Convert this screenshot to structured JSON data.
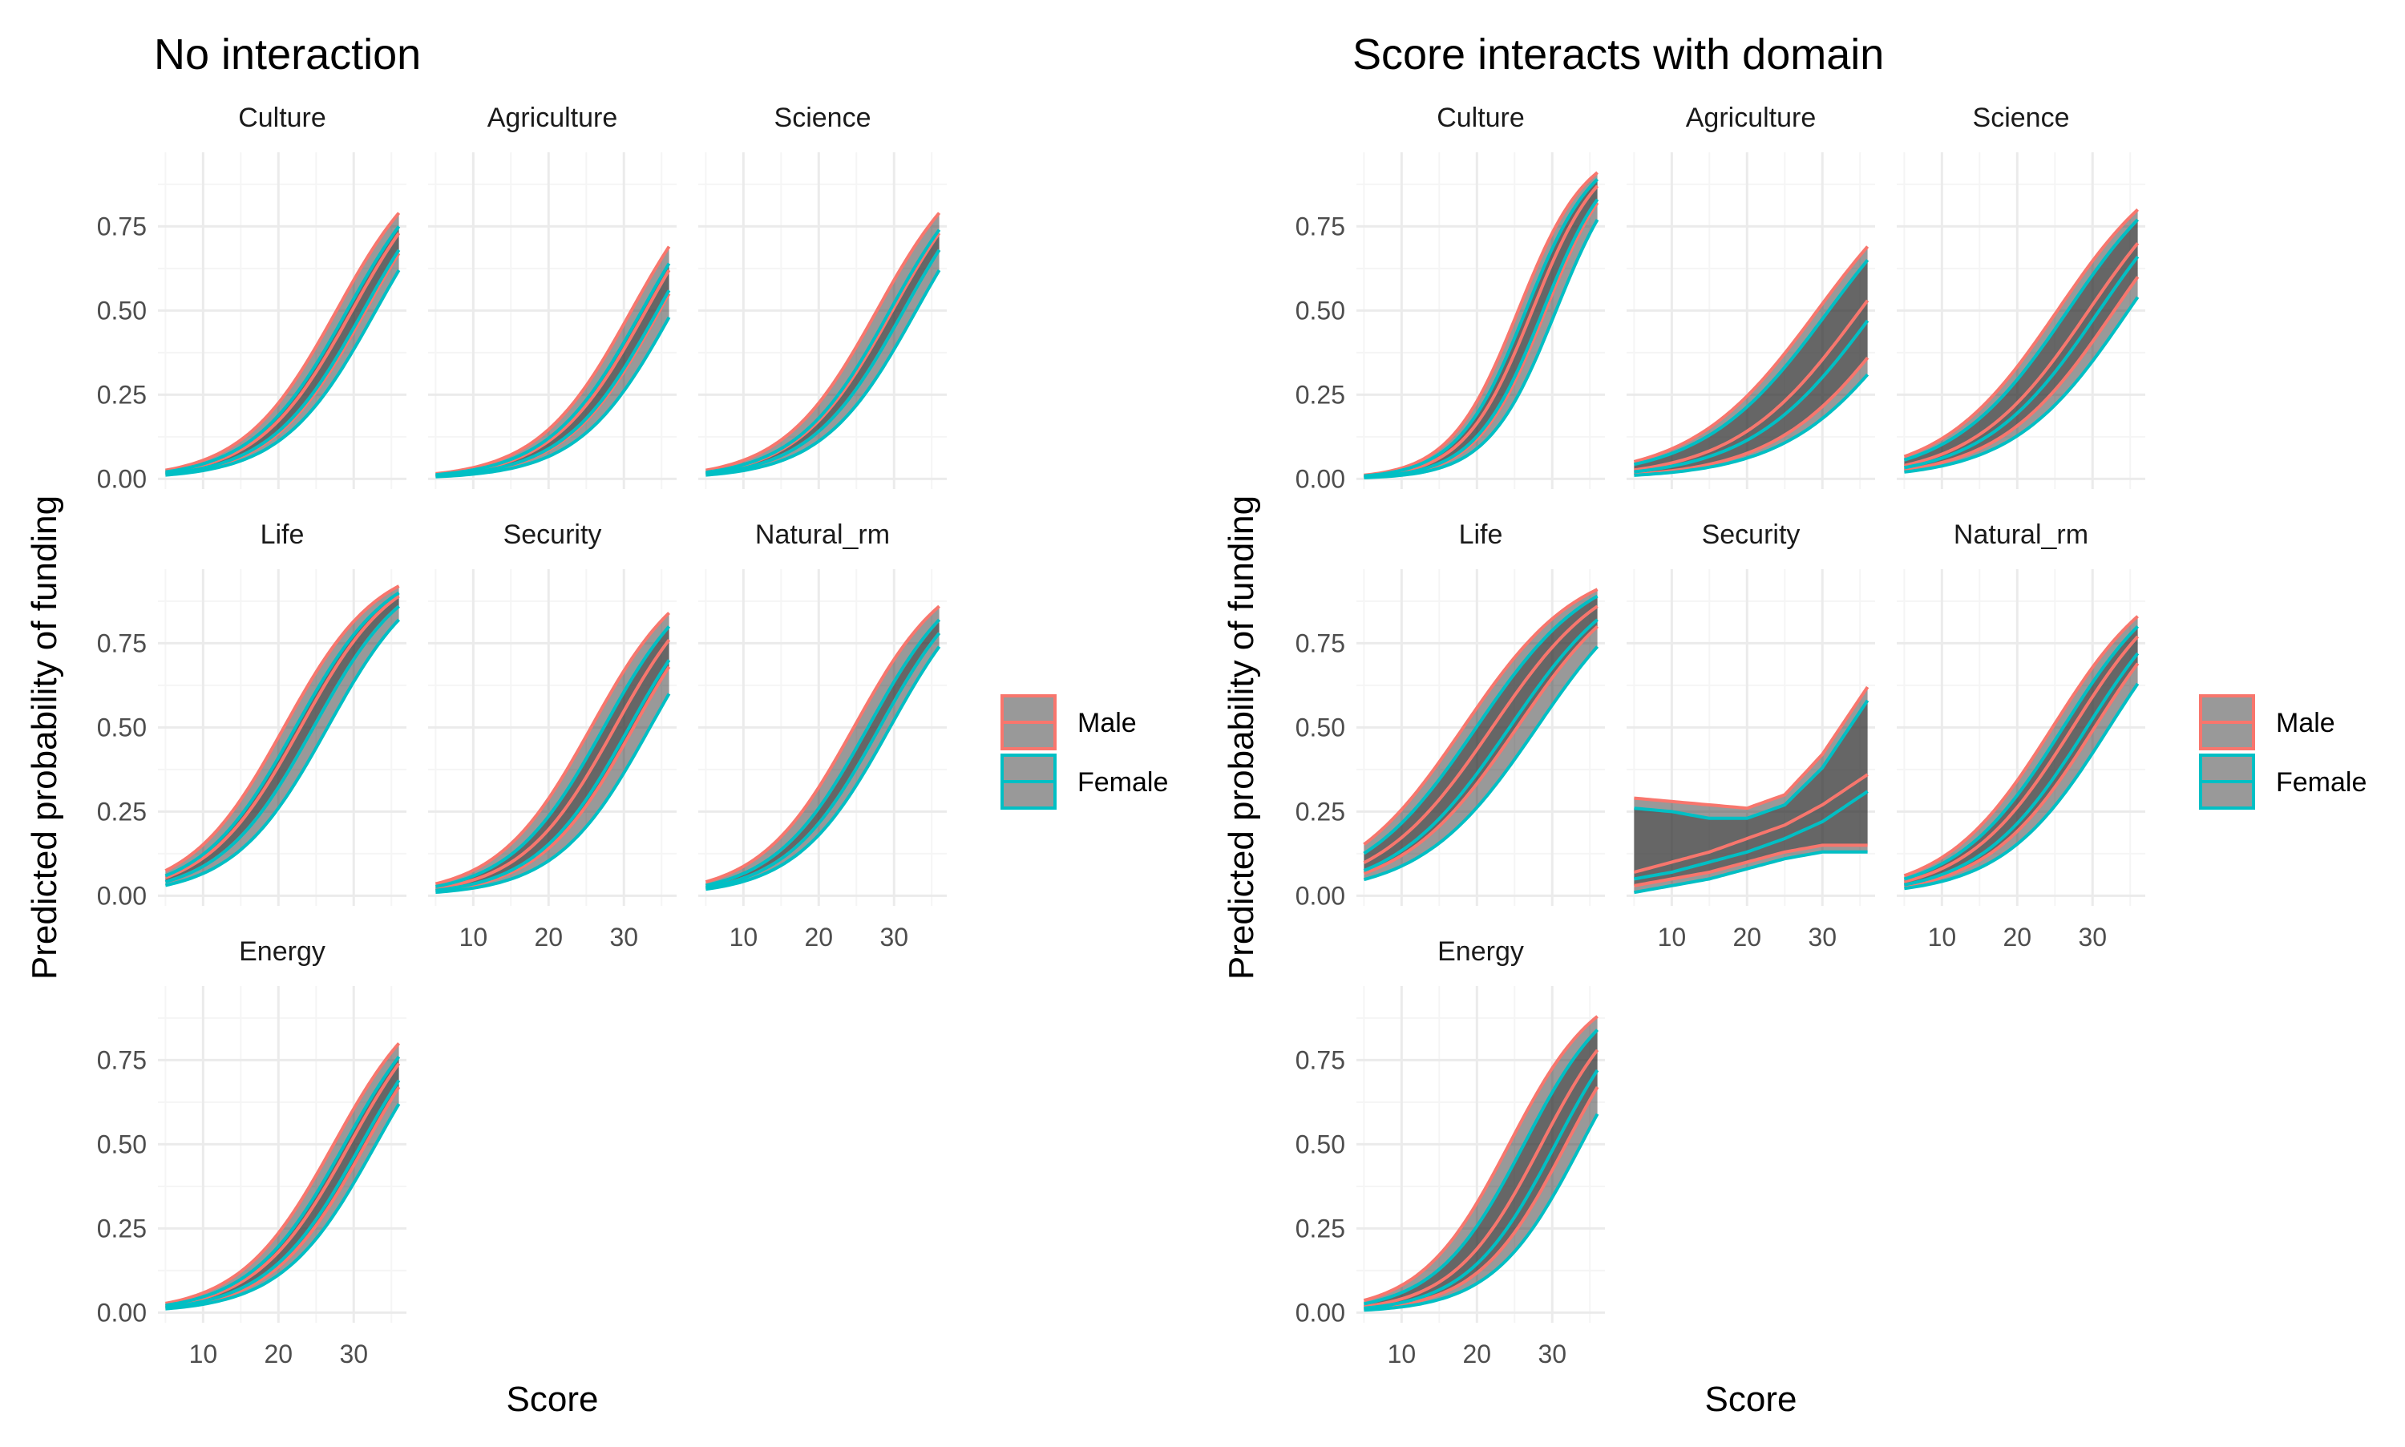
{
  "colors": {
    "male": "#F8766D",
    "female": "#00BFC4",
    "ribbon": "#333333",
    "grid_major": "#EBEBEB",
    "grid_minor": "#F5F5F5"
  },
  "legend": {
    "entries": [
      {
        "label": "Male",
        "color": "#F8766D"
      },
      {
        "label": "Female",
        "color": "#00BFC4"
      }
    ]
  },
  "chart_data": [
    {
      "type": "line",
      "title": "No interaction",
      "xlabel": "Score",
      "ylabel": "Predicted probability of funding",
      "xlim": [
        4,
        37
      ],
      "ylim": [
        -0.03,
        0.97
      ],
      "xticks": [
        10,
        20,
        30
      ],
      "yticks": [
        0.0,
        0.25,
        0.5,
        0.75
      ],
      "ytick_labels": [
        "0.00",
        "0.25",
        "0.50",
        "0.75"
      ],
      "x_range": [
        5,
        36
      ],
      "grid": true,
      "legend_position": "right",
      "facets": [
        {
          "name": "Culture",
          "series": [
            {
              "name": "Male",
              "at_x36": {
                "lo": 0.67,
                "fit": 0.73,
                "hi": 0.79
              },
              "logit_slope": 0.16
            },
            {
              "name": "Female",
              "at_x36": {
                "lo": 0.62,
                "fit": 0.68,
                "hi": 0.75
              },
              "logit_slope": 0.16
            }
          ]
        },
        {
          "name": "Agriculture",
          "series": [
            {
              "name": "Male",
              "at_x36": {
                "lo": 0.55,
                "fit": 0.62,
                "hi": 0.69
              },
              "logit_slope": 0.16
            },
            {
              "name": "Female",
              "at_x36": {
                "lo": 0.48,
                "fit": 0.56,
                "hi": 0.64
              },
              "logit_slope": 0.16
            }
          ]
        },
        {
          "name": "Science",
          "series": [
            {
              "name": "Male",
              "at_x36": {
                "lo": 0.68,
                "fit": 0.73,
                "hi": 0.79
              },
              "logit_slope": 0.16
            },
            {
              "name": "Female",
              "at_x36": {
                "lo": 0.62,
                "fit": 0.68,
                "hi": 0.74
              },
              "logit_slope": 0.16
            }
          ]
        },
        {
          "name": "Life",
          "series": [
            {
              "name": "Male",
              "at_x36": {
                "lo": 0.86,
                "fit": 0.89,
                "hi": 0.92
              },
              "logit_slope": 0.16
            },
            {
              "name": "Female",
              "at_x36": {
                "lo": 0.82,
                "fit": 0.86,
                "hi": 0.9
              },
              "logit_slope": 0.16
            }
          ]
        },
        {
          "name": "Security",
          "series": [
            {
              "name": "Male",
              "at_x36": {
                "lo": 0.68,
                "fit": 0.76,
                "hi": 0.84
              },
              "logit_slope": 0.16
            },
            {
              "name": "Female",
              "at_x36": {
                "lo": 0.6,
                "fit": 0.7,
                "hi": 0.8
              },
              "logit_slope": 0.16
            }
          ]
        },
        {
          "name": "Natural_rm",
          "series": [
            {
              "name": "Male",
              "at_x36": {
                "lo": 0.78,
                "fit": 0.82,
                "hi": 0.86
              },
              "logit_slope": 0.16
            },
            {
              "name": "Female",
              "at_x36": {
                "lo": 0.74,
                "fit": 0.78,
                "hi": 0.82
              },
              "logit_slope": 0.16
            }
          ]
        },
        {
          "name": "Energy",
          "series": [
            {
              "name": "Male",
              "at_x36": {
                "lo": 0.67,
                "fit": 0.74,
                "hi": 0.8
              },
              "logit_slope": 0.16
            },
            {
              "name": "Female",
              "at_x36": {
                "lo": 0.62,
                "fit": 0.69,
                "hi": 0.76
              },
              "logit_slope": 0.16
            }
          ]
        }
      ]
    },
    {
      "type": "line",
      "title": "Score interacts with domain",
      "xlabel": "Score",
      "ylabel": "Predicted probability of funding",
      "xlim": [
        4,
        37
      ],
      "ylim": [
        -0.03,
        0.97
      ],
      "xticks": [
        10,
        20,
        30
      ],
      "yticks": [
        0.0,
        0.25,
        0.5,
        0.75
      ],
      "ytick_labels": [
        "0.00",
        "0.25",
        "0.50",
        "0.75"
      ],
      "x_range": [
        5,
        36
      ],
      "grid": true,
      "legend_position": "right",
      "facets": [
        {
          "name": "Culture",
          "series": [
            {
              "name": "Male",
              "at_x36": {
                "lo": 0.82,
                "fit": 0.87,
                "hi": 0.91
              },
              "logit_slope": 0.22
            },
            {
              "name": "Female",
              "at_x36": {
                "lo": 0.77,
                "fit": 0.83,
                "hi": 0.89
              },
              "logit_slope": 0.22
            }
          ]
        },
        {
          "name": "Agriculture",
          "series": [
            {
              "name": "Male",
              "at_x36": {
                "lo": 0.36,
                "fit": 0.53,
                "hi": 0.69
              },
              "logit_slope": 0.12
            },
            {
              "name": "Female",
              "at_x36": {
                "lo": 0.31,
                "fit": 0.47,
                "hi": 0.65
              },
              "logit_slope": 0.12
            }
          ]
        },
        {
          "name": "Science",
          "series": [
            {
              "name": "Male",
              "at_x36": {
                "lo": 0.6,
                "fit": 0.7,
                "hi": 0.8
              },
              "logit_slope": 0.13
            },
            {
              "name": "Female",
              "at_x36": {
                "lo": 0.54,
                "fit": 0.66,
                "hi": 0.77
              },
              "logit_slope": 0.13
            }
          ]
        },
        {
          "name": "Life",
          "series": [
            {
              "name": "Male",
              "at_x36": {
                "lo": 0.8,
                "fit": 0.86,
                "hi": 0.91
              },
              "logit_slope": 0.13
            },
            {
              "name": "Female",
              "at_x36": {
                "lo": 0.74,
                "fit": 0.82,
                "hi": 0.89
              },
              "logit_slope": 0.13
            }
          ]
        },
        {
          "name": "Security",
          "series": [
            {
              "name": "Male",
              "x": [
                5,
                10,
                15,
                20,
                25,
                30,
                36
              ],
              "fit": [
                0.07,
                0.1,
                0.13,
                0.17,
                0.21,
                0.27,
                0.36
              ],
              "lo": [
                0.03,
                0.05,
                0.07,
                0.1,
                0.13,
                0.15,
                0.15
              ],
              "hi": [
                0.29,
                0.28,
                0.27,
                0.26,
                0.3,
                0.42,
                0.62
              ]
            },
            {
              "name": "Female",
              "x": [
                5,
                10,
                15,
                20,
                25,
                30,
                36
              ],
              "fit": [
                0.05,
                0.07,
                0.1,
                0.13,
                0.17,
                0.22,
                0.31
              ],
              "lo": [
                0.01,
                0.03,
                0.05,
                0.08,
                0.11,
                0.13,
                0.13
              ],
              "hi": [
                0.26,
                0.25,
                0.23,
                0.23,
                0.27,
                0.38,
                0.58
              ]
            }
          ]
        },
        {
          "name": "Natural_rm",
          "series": [
            {
              "name": "Male",
              "at_x36": {
                "lo": 0.69,
                "fit": 0.77,
                "hi": 0.83
              },
              "logit_slope": 0.14
            },
            {
              "name": "Female",
              "at_x36": {
                "lo": 0.63,
                "fit": 0.72,
                "hi": 0.8
              },
              "logit_slope": 0.14
            }
          ]
        },
        {
          "name": "Energy",
          "series": [
            {
              "name": "Male",
              "at_x36": {
                "lo": 0.67,
                "fit": 0.78,
                "hi": 0.88
              },
              "logit_slope": 0.17
            },
            {
              "name": "Female",
              "at_x36": {
                "lo": 0.59,
                "fit": 0.72,
                "hi": 0.84
              },
              "logit_slope": 0.17
            }
          ]
        }
      ]
    }
  ]
}
